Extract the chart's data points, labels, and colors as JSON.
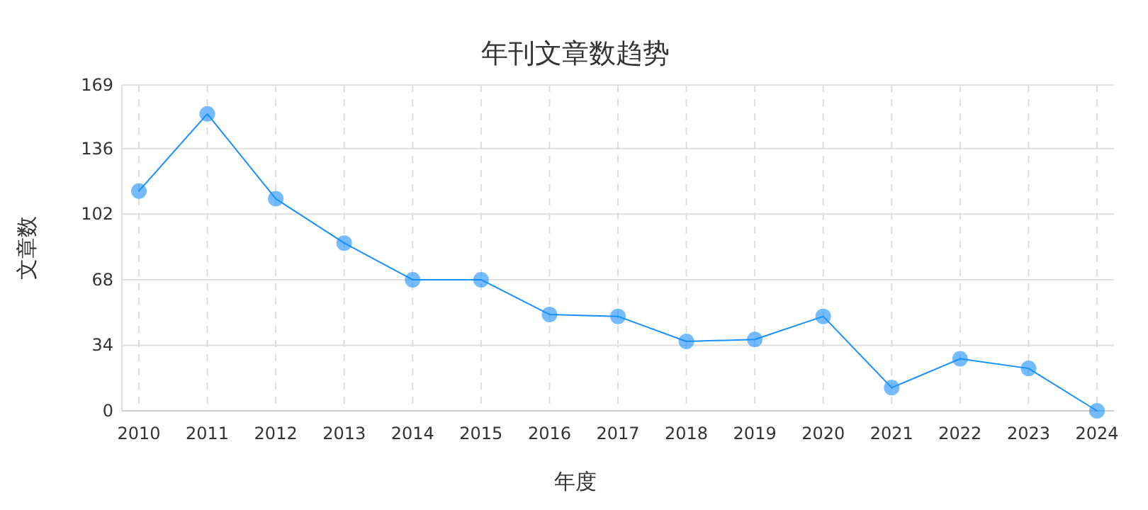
{
  "chart_data": {
    "type": "line",
    "title": "年刊文章数趋势",
    "xlabel": "年度",
    "ylabel": "文章数",
    "categories": [
      "2010",
      "2011",
      "2012",
      "2013",
      "2014",
      "2015",
      "2016",
      "2017",
      "2018",
      "2019",
      "2020",
      "2021",
      "2022",
      "2023",
      "2024"
    ],
    "series": [
      {
        "color": "#1890ff",
        "values": [
          114,
          154,
          110,
          87,
          68,
          68,
          50,
          49,
          36,
          37,
          49,
          12,
          27,
          22,
          0
        ]
      }
    ],
    "ylim": [
      0,
      169
    ],
    "yticks": [
      0,
      34,
      68,
      102,
      136,
      169
    ],
    "grid": true,
    "marker": "circle",
    "line_style": "solid"
  }
}
